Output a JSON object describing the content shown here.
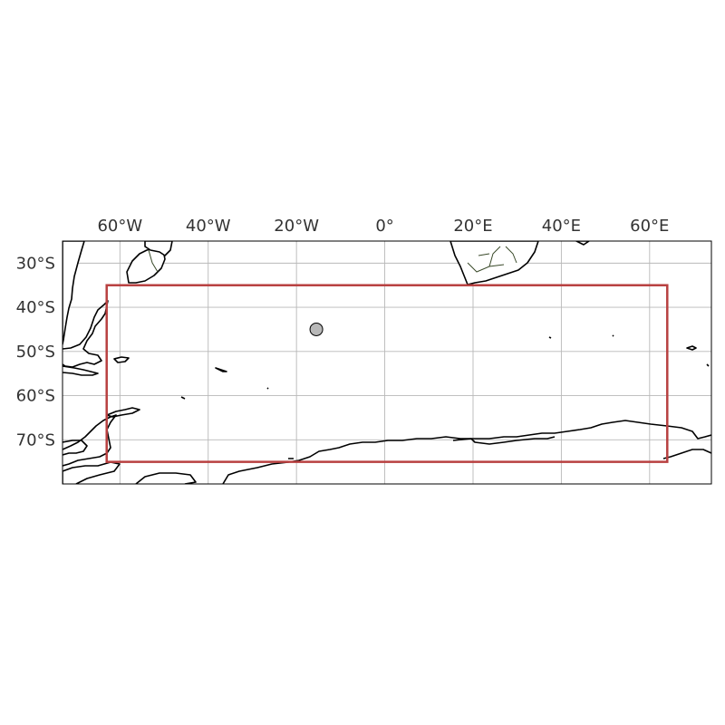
{
  "map": {
    "lon_range": [
      -73,
      74
    ],
    "lat_range": [
      -80,
      -25
    ],
    "lon_ticks": [
      {
        "value": -60,
        "label": "60°W"
      },
      {
        "value": -40,
        "label": "40°W"
      },
      {
        "value": -20,
        "label": "20°W"
      },
      {
        "value": 0,
        "label": "0°"
      },
      {
        "value": 20,
        "label": "20°E"
      },
      {
        "value": 40,
        "label": "40°E"
      },
      {
        "value": 60,
        "label": "60°E"
      }
    ],
    "lat_ticks": [
      {
        "value": -30,
        "label": "30°S"
      },
      {
        "value": -40,
        "label": "40°S"
      },
      {
        "value": -50,
        "label": "50°S"
      },
      {
        "value": -60,
        "label": "60°S"
      },
      {
        "value": -70,
        "label": "70°S"
      }
    ],
    "gridlines": true,
    "region_box": {
      "lon_min": -63,
      "lon_max": 64,
      "lat_min": -75,
      "lat_max": -35,
      "color": "#b84040"
    },
    "marker": {
      "lon": -15.5,
      "lat": -45,
      "fill": "#b8b8b8",
      "stroke": "#000000"
    }
  }
}
